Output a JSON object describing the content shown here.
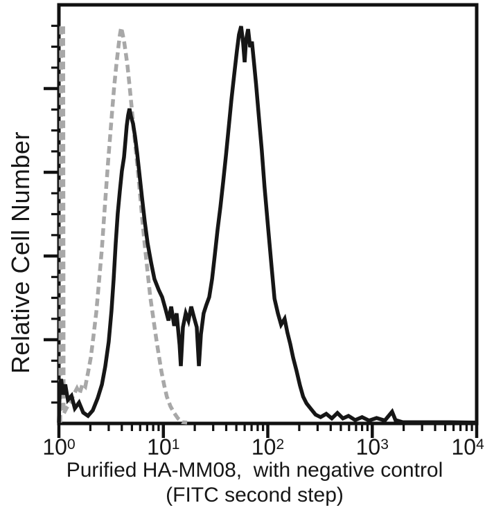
{
  "figure": {
    "y_axis_label": "Relative Cell Number",
    "caption_line1": "Purified HA-MM08,  with negative control",
    "caption_line2": "(FITC second step)"
  },
  "colors": {
    "axis": "#111111",
    "sample_trace": "#161616",
    "control_trace": "#a8a8a8",
    "background": "#ffffff"
  },
  "chart_data": {
    "type": "line",
    "subtype": "flow-cytometry-overlay-histogram",
    "title": "",
    "xlabel": "Purified HA-MM08,  with negative control (FITC second step)",
    "ylabel": "Relative Cell Number",
    "grid": false,
    "legend": "none",
    "x_axis": {
      "scale": "log10",
      "min": 1,
      "max": 10000,
      "decades": [
        0,
        1,
        2,
        3,
        4
      ],
      "ticks": [
        {
          "base": "10",
          "exp": "0"
        },
        {
          "base": "10",
          "exp": "1"
        },
        {
          "base": "10",
          "exp": "2"
        },
        {
          "base": "10",
          "exp": "3"
        },
        {
          "base": "10",
          "exp": "4"
        }
      ]
    },
    "y_axis": {
      "label": "Relative Cell Number",
      "scale": "relative",
      "min": 0,
      "max": 1,
      "minor_tick_count": 20,
      "major_tick_every": 4,
      "numeric_labels": false
    },
    "series": [
      {
        "name": "negative control (FITC second step)",
        "style": "dashed",
        "color": "#a8a8a8",
        "dash": "11 6",
        "width": 5.5,
        "peak_x": 4.0,
        "peak_height": 0.95,
        "points": [
          [
            1.03,
            0.002
          ],
          [
            1.05,
            0.946
          ],
          [
            1.1,
            0.952
          ],
          [
            1.11,
            0.023
          ],
          [
            1.18,
            0.036
          ],
          [
            1.28,
            0.05
          ],
          [
            1.38,
            0.068
          ],
          [
            1.49,
            0.084
          ],
          [
            1.58,
            0.071
          ],
          [
            1.68,
            0.094
          ],
          [
            1.79,
            0.088
          ],
          [
            1.9,
            0.121
          ],
          [
            2.02,
            0.157
          ],
          [
            2.14,
            0.207
          ],
          [
            2.28,
            0.266
          ],
          [
            2.42,
            0.339
          ],
          [
            2.58,
            0.418
          ],
          [
            2.7,
            0.488
          ],
          [
            2.83,
            0.559
          ],
          [
            2.96,
            0.625
          ],
          [
            3.1,
            0.689
          ],
          [
            3.24,
            0.749
          ],
          [
            3.39,
            0.807
          ],
          [
            3.55,
            0.856
          ],
          [
            3.72,
            0.901
          ],
          [
            3.83,
            0.927
          ],
          [
            3.95,
            0.946
          ],
          [
            4.07,
            0.931
          ],
          [
            4.2,
            0.914
          ],
          [
            4.33,
            0.891
          ],
          [
            4.54,
            0.853
          ],
          [
            4.74,
            0.808
          ],
          [
            4.96,
            0.759
          ],
          [
            5.2,
            0.704
          ],
          [
            5.44,
            0.655
          ],
          [
            5.7,
            0.605
          ],
          [
            5.97,
            0.55
          ],
          [
            6.25,
            0.494
          ],
          [
            6.63,
            0.428
          ],
          [
            7.06,
            0.362
          ],
          [
            7.5,
            0.302
          ],
          [
            8.0,
            0.253
          ],
          [
            8.5,
            0.207
          ],
          [
            9.03,
            0.164
          ],
          [
            9.59,
            0.124
          ],
          [
            10.2,
            0.091
          ],
          [
            10.8,
            0.064
          ],
          [
            11.7,
            0.041
          ],
          [
            12.7,
            0.025
          ],
          [
            13.8,
            0.012
          ],
          [
            15.2,
            0.003
          ],
          [
            16.9,
            0.002
          ]
        ]
      },
      {
        "name": "Purified HA-MM08",
        "style": "solid",
        "color": "#161616",
        "dash": null,
        "width": 5.5,
        "peak_x": [
          4.8,
          58
        ],
        "peak_height": [
          0.75,
          0.95
        ],
        "points": [
          [
            1.0,
            0.002
          ],
          [
            1.02,
            0.093
          ],
          [
            1.05,
            0.106
          ],
          [
            1.1,
            0.069
          ],
          [
            1.15,
            0.093
          ],
          [
            1.22,
            0.056
          ],
          [
            1.32,
            0.066
          ],
          [
            1.42,
            0.036
          ],
          [
            1.56,
            0.05
          ],
          [
            1.71,
            0.026
          ],
          [
            1.9,
            0.018
          ],
          [
            2.11,
            0.031
          ],
          [
            2.35,
            0.06
          ],
          [
            2.58,
            0.093
          ],
          [
            2.78,
            0.136
          ],
          [
            3.0,
            0.195
          ],
          [
            3.19,
            0.269
          ],
          [
            3.34,
            0.344
          ],
          [
            3.5,
            0.43
          ],
          [
            3.66,
            0.501
          ],
          [
            3.83,
            0.554
          ],
          [
            4.01,
            0.603
          ],
          [
            4.2,
            0.636
          ],
          [
            4.33,
            0.674
          ],
          [
            4.46,
            0.711
          ],
          [
            4.6,
            0.736
          ],
          [
            4.74,
            0.752
          ],
          [
            4.89,
            0.734
          ],
          [
            5.12,
            0.717
          ],
          [
            5.36,
            0.686
          ],
          [
            5.62,
            0.645
          ],
          [
            5.89,
            0.598
          ],
          [
            6.25,
            0.539
          ],
          [
            6.63,
            0.484
          ],
          [
            7.06,
            0.431
          ],
          [
            7.62,
            0.385
          ],
          [
            8.22,
            0.345
          ],
          [
            9.03,
            0.319
          ],
          [
            9.73,
            0.302
          ],
          [
            10.5,
            0.273
          ],
          [
            11.2,
            0.246
          ],
          [
            11.9,
            0.279
          ],
          [
            12.7,
            0.233
          ],
          [
            13.4,
            0.263
          ],
          [
            14.3,
            0.187
          ],
          [
            14.7,
            0.137
          ],
          [
            15.4,
            0.23
          ],
          [
            16.4,
            0.263
          ],
          [
            17.4,
            0.246
          ],
          [
            18.5,
            0.279
          ],
          [
            19.7,
            0.253
          ],
          [
            20.9,
            0.23
          ],
          [
            21.9,
            0.137
          ],
          [
            22.9,
            0.213
          ],
          [
            24.3,
            0.263
          ],
          [
            25.8,
            0.283
          ],
          [
            27.5,
            0.302
          ],
          [
            29.3,
            0.345
          ],
          [
            31.1,
            0.402
          ],
          [
            33.1,
            0.464
          ],
          [
            35.2,
            0.517
          ],
          [
            37.4,
            0.577
          ],
          [
            39.9,
            0.643
          ],
          [
            42.3,
            0.709
          ],
          [
            44.9,
            0.775
          ],
          [
            47.8,
            0.836
          ],
          [
            50.7,
            0.891
          ],
          [
            53.0,
            0.929
          ],
          [
            55.5,
            0.949
          ],
          [
            58.1,
            0.909
          ],
          [
            60.0,
            0.863
          ],
          [
            61.9,
            0.916
          ],
          [
            64.8,
            0.942
          ],
          [
            67.7,
            0.899
          ],
          [
            70.5,
            0.912
          ],
          [
            73.9,
            0.86
          ],
          [
            77.3,
            0.81
          ],
          [
            82.2,
            0.731
          ],
          [
            87.5,
            0.653
          ],
          [
            93.1,
            0.565
          ],
          [
            101,
            0.463
          ],
          [
            109,
            0.372
          ],
          [
            116,
            0.298
          ],
          [
            125,
            0.263
          ],
          [
            134,
            0.236
          ],
          [
            145,
            0.25
          ],
          [
            154,
            0.217
          ],
          [
            164,
            0.19
          ],
          [
            175,
            0.157
          ],
          [
            188,
            0.127
          ],
          [
            203,
            0.091
          ],
          [
            218,
            0.064
          ],
          [
            235,
            0.048
          ],
          [
            258,
            0.035
          ],
          [
            287,
            0.021
          ],
          [
            320,
            0.015
          ],
          [
            363,
            0.023
          ],
          [
            410,
            0.012
          ],
          [
            464,
            0.025
          ],
          [
            524,
            0.012
          ],
          [
            592,
            0.018
          ],
          [
            686,
            0.008
          ],
          [
            799,
            0.015
          ],
          [
            932,
            0.007
          ],
          [
            1100,
            0.013
          ],
          [
            1320,
            0.007
          ],
          [
            1550,
            0.028
          ],
          [
            1670,
            0.008
          ],
          [
            1950,
            0.003
          ],
          [
            3060,
            0.003
          ],
          [
            5630,
            0.003
          ],
          [
            9900,
            0.002
          ]
        ]
      }
    ]
  }
}
